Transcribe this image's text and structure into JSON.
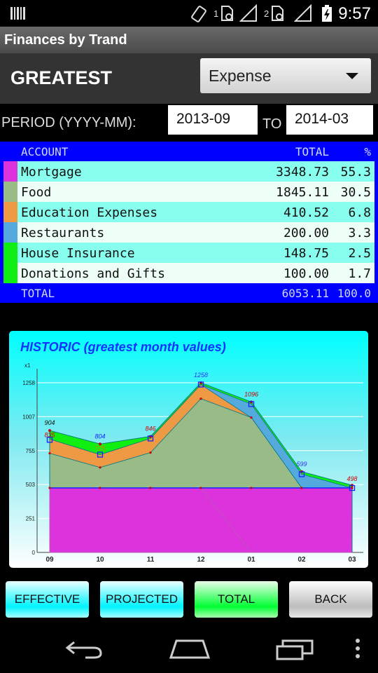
{
  "status_bar": {
    "time": "9:57",
    "sim1": "1",
    "sim2": "2"
  },
  "app": {
    "title": "Finances by Trand"
  },
  "header": {
    "title": "GREATEST",
    "type_select": "Expense"
  },
  "period": {
    "label": "PERIOD (YYYY-MM):",
    "from": "2013-09",
    "to_label": "TO",
    "to": "2014-03"
  },
  "table": {
    "headers": {
      "account": "ACCOUNT",
      "total": "TOTAL",
      "percent": "%"
    },
    "rows": [
      {
        "name": "Mortgage",
        "total": "3348.73",
        "percent": "55.3",
        "color": "#dd33dd"
      },
      {
        "name": "Food",
        "total": "1845.11",
        "percent": "30.5",
        "color": "#99bb88"
      },
      {
        "name": "Education Expenses",
        "total": "410.52",
        "percent": "6.8",
        "color": "#ee9944"
      },
      {
        "name": "Restaurants",
        "total": "200.00",
        "percent": "3.3",
        "color": "#55aadd"
      },
      {
        "name": "House Insurance",
        "total": "148.75",
        "percent": "2.5",
        "color": "#11ee11"
      },
      {
        "name": "Donations and Gifts",
        "total": "100.00",
        "percent": "1.7",
        "color": "#11ee11"
      }
    ],
    "row_bg": [
      "#88ffee",
      "#eefff8"
    ],
    "footer": {
      "label": "TOTAL",
      "total": "6053.11",
      "percent": "100.0"
    }
  },
  "chart_data": {
    "type": "area",
    "title": "HISTORIC (greatest month values)",
    "y_unit": "x1",
    "categories": [
      "09",
      "10",
      "11",
      "12",
      "01",
      "02",
      "03"
    ],
    "y_ticks": [
      0,
      251,
      503,
      755,
      1007,
      1258
    ],
    "ylim": [
      0,
      1258
    ],
    "series": [
      {
        "name": "Mortgage",
        "color": "#dd33dd",
        "values": [
          478,
          478,
          478,
          478,
          478,
          478,
          478
        ]
      },
      {
        "name": "Food",
        "color": "#99bb88",
        "values": [
          735,
          630,
          740,
          1140,
          1000,
          478,
          478
        ]
      },
      {
        "name": "Education Expenses",
        "color": "#ee9944",
        "values": [
          840,
          725,
          845,
          1245,
          1000,
          478,
          478
        ]
      },
      {
        "name": "Restaurants",
        "color": "#55aadd",
        "values": [
          840,
          725,
          845,
          1245,
          1100,
          580,
          478
        ]
      },
      {
        "name": "House Insurance",
        "color": "#11ee11",
        "values": [
          904,
          804,
          860,
          1258,
          1116,
          599,
          498
        ]
      },
      {
        "name": "Donations and Gifts",
        "color": "#11ee11",
        "values": [
          904,
          804,
          860,
          1258,
          1116,
          599,
          498
        ]
      }
    ],
    "projected_values": [
      835,
      725,
      845,
      1245,
      1100,
      580,
      478
    ],
    "mortgage_actual": [
      478,
      478,
      478,
      478,
      0,
      0,
      0
    ],
    "point_labels": [
      "904",
      "835",
      "804",
      "725",
      "846",
      "1258",
      "1096",
      "599",
      "498"
    ],
    "grid": true
  },
  "buttons": {
    "effective": "EFFECTIVE",
    "projected": "PROJECTED",
    "total": "TOTAL",
    "back": "BACK"
  }
}
